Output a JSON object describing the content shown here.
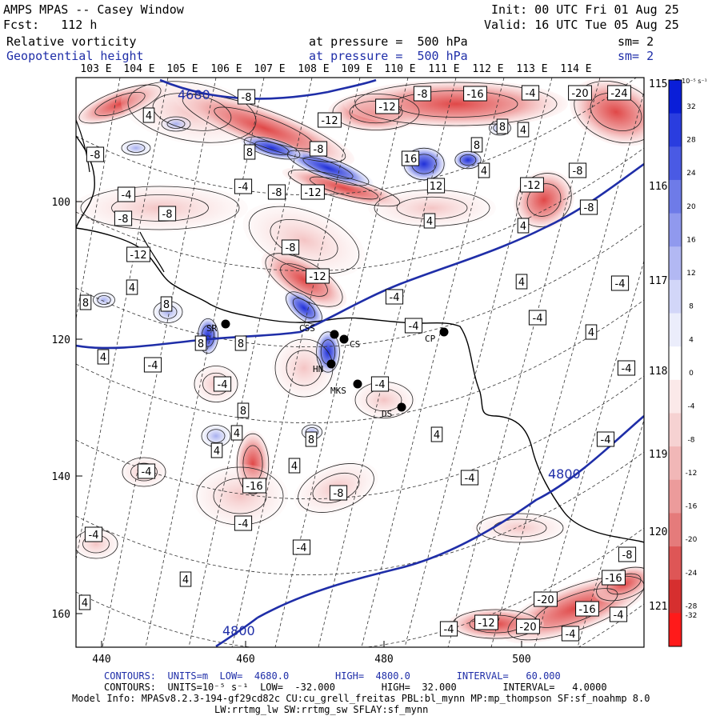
{
  "header": {
    "title": "AMPS MPAS -- Casey Window",
    "forecast": "Fcst:   112 h",
    "init": "Init: 00 UTC Fri 01 Aug 25",
    "valid": "Valid: 16 UTC Tue 05 Aug 25",
    "field1_name": "Relative vorticity",
    "field1_pressure": "at pressure =  500 hPa",
    "field1_sm": "sm= 2",
    "field2_name": "Geopotential height",
    "field2_pressure": "at pressure =  500 hPa",
    "field2_sm": "sm= 2"
  },
  "lon_labels_top": [
    "103 E",
    "104 E",
    "105 E",
    "106 E",
    "107 E",
    "108 E",
    "109 E",
    "110 E",
    "111 E",
    "112 E",
    "113 E",
    "114 E"
  ],
  "lon_labels_right": [
    "115 E",
    "116 E",
    "117 E",
    "118 E",
    "119 E",
    "120 E",
    "121 E"
  ],
  "x_axis_ticks": [
    "440",
    "460",
    "480",
    "500"
  ],
  "y_axis_ticks": [
    "100",
    "120",
    "140",
    "160"
  ],
  "colorbar": {
    "unit": "10⁻⁵ s⁻¹",
    "labels": [
      "32",
      "28",
      "24",
      "20",
      "16",
      "12",
      "8",
      "4",
      "0",
      "-4",
      "-8",
      "-12",
      "-16",
      "-20",
      "-24",
      "-28",
      "-32"
    ],
    "colors": [
      "#0a1ed8",
      "#2a3ddf",
      "#4a5ae4",
      "#6e7be8",
      "#9099ee",
      "#b2b8f3",
      "#d2d6f8",
      "#ebedfb",
      "#ffffff",
      "#fbe9e9",
      "#f6d2d2",
      "#f1b7b7",
      "#ec9b9b",
      "#e57b7b",
      "#de5656",
      "#d62f2f",
      "#ff1a1a"
    ]
  },
  "stations": [
    {
      "code": "SR"
    },
    {
      "code": "CSS"
    },
    {
      "code": "CS"
    },
    {
      "code": "HN"
    },
    {
      "code": "MKS"
    },
    {
      "code": "DS"
    },
    {
      "code": "CP"
    }
  ],
  "contour_labels": [
    "-4",
    "4",
    "-8",
    "8",
    "-12",
    "12",
    "-16",
    "16",
    "-20",
    "-24",
    "4800",
    "4680"
  ],
  "footer": {
    "line1": "CONTOURS:  UNITS=m  LOW=  4680.0        HIGH=  4800.0        INTERVAL=   60.000",
    "line2": "CONTOURS:  UNITS=10⁻⁵ s⁻¹  LOW=  -32.000        HIGH=  32.000        INTERVAL=   4.0000",
    "line3": "Model Info: MPASv8.2.3-194-gf29cd82c CU:cu_grell_freitas PBL:bl_mynn MP:mp_thompson SF:sf_noahmp 8.0",
    "line4": "LW:rrtmg_lw SW:rrtmg_sw SFLAY:sf_mynn"
  }
}
